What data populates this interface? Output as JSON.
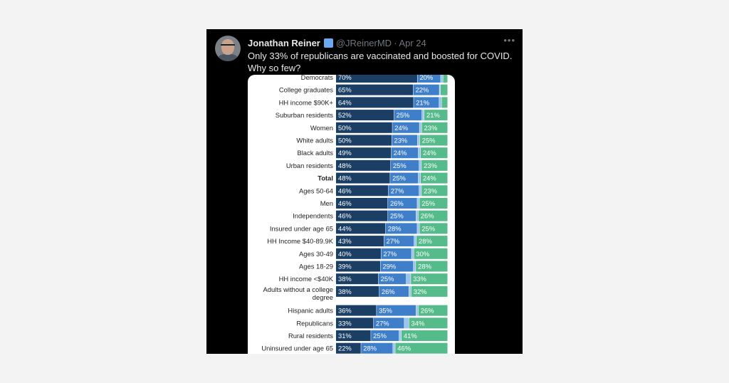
{
  "tweet": {
    "author_name": "Jonathan Reiner",
    "handle": "@JReinerMD",
    "separator": "·",
    "date": "Apr 24",
    "more_icon": "more-dots-icon",
    "verified_icon": "verified-badge-icon",
    "text": "Only 33% of republicans are vaccinated and boosted for COVID. Why so few?"
  },
  "colors": {
    "vaccinated_boosted": "#1b3e64",
    "vaccinated_only": "#3f7fca",
    "partial": "#9cc3ee",
    "unvaccinated": "#56bb8a"
  },
  "chart_data": {
    "type": "bar",
    "orientation": "horizontal",
    "stacked": true,
    "categories": [
      "Democrats",
      "College graduates",
      "HH income $90K+",
      "Suburban residents",
      "Women",
      "White adults",
      "Black adults",
      "Urban residents",
      "Total",
      "Ages 50-64",
      "Men",
      "Independents",
      "Insured under age 65",
      "HH Income $40-89.9K",
      "Ages 30-49",
      "Ages 18-29",
      "HH income <$40K",
      "Adults without a college degree",
      "Hispanic adults",
      "Republicans",
      "Rural residents",
      "Uninsured under age 65"
    ],
    "series": [
      {
        "color_key": "vaccinated_boosted",
        "values": [
          70,
          65,
          64,
          52,
          50,
          50,
          49,
          48,
          48,
          46,
          46,
          46,
          44,
          43,
          40,
          39,
          38,
          38,
          36,
          33,
          31,
          22
        ],
        "labels": [
          "70%",
          "65%",
          "64%",
          "52%",
          "50%",
          "50%",
          "49%",
          "48%",
          "48%",
          "46%",
          "46%",
          "46%",
          "44%",
          "43%",
          "40%",
          "39%",
          "38%",
          "38%",
          "36%",
          "33%",
          "31%",
          "22%"
        ]
      },
      {
        "color_key": "vaccinated_only",
        "values": [
          20,
          22,
          21,
          25,
          24,
          23,
          24,
          25,
          25,
          27,
          26,
          25,
          28,
          27,
          27,
          29,
          25,
          26,
          35,
          27,
          25,
          28
        ],
        "labels": [
          "20%",
          "22%",
          "21%",
          "25%",
          "24%",
          "23%",
          "24%",
          "25%",
          "25%",
          "27%",
          "26%",
          "25%",
          "28%",
          "27%",
          "27%",
          "29%",
          "25%",
          "26%",
          "35%",
          "27%",
          "25%",
          "28%"
        ]
      },
      {
        "color_key": "partial",
        "values": [
          2,
          1,
          2,
          2,
          2,
          2,
          2,
          2,
          2,
          2,
          2,
          2,
          2,
          2,
          2,
          2,
          4,
          2,
          2,
          4,
          2,
          2
        ],
        "labels": [
          "",
          "",
          "",
          "",
          "",
          "",
          "",
          "",
          "",
          "",
          "",
          "",
          "",
          "",
          "",
          "",
          "",
          "",
          "",
          "",
          "",
          ""
        ]
      },
      {
        "color_key": "unvaccinated",
        "values": [
          4,
          6,
          5,
          21,
          23,
          25,
          24,
          23,
          24,
          23,
          25,
          26,
          25,
          28,
          30,
          28,
          33,
          32,
          26,
          34,
          41,
          46
        ],
        "labels": [
          "",
          "",
          "",
          "21%",
          "23%",
          "25%",
          "24%",
          "23%",
          "24%",
          "23%",
          "25%",
          "26%",
          "25%",
          "28%",
          "30%",
          "28%",
          "33%",
          "32%",
          "26%",
          "34%",
          "41%",
          "46%"
        ]
      }
    ],
    "bold_category": "Total"
  }
}
